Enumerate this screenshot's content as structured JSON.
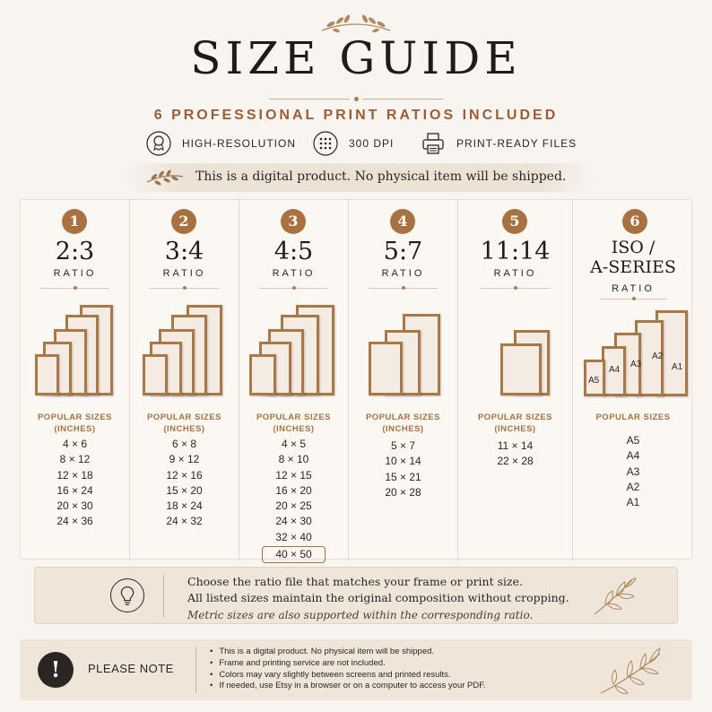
{
  "header": {
    "title": "SIZE GUIDE",
    "subtitle": "6 PROFESSIONAL PRINT RATIOS INCLUDED",
    "features": [
      {
        "icon": "award-ribbon-icon",
        "label": "HIGH-RESOLUTION"
      },
      {
        "icon": "dot-grid-icon",
        "label": "300 DPI"
      },
      {
        "icon": "printer-icon",
        "label": "PRINT-READY FILES"
      }
    ],
    "digital_notice": "This is a digital product. No physical item will be shipped."
  },
  "ratios": [
    {
      "number": "1",
      "ratio": "2:3",
      "ratio_label": "RATIO",
      "popular_title": "POPULAR SIZES",
      "popular_unit": "(INCHES)",
      "sizes": [
        "4 × 6",
        "8 × 12",
        "12 × 18",
        "16 × 24",
        "20 × 30",
        "24 × 36"
      ]
    },
    {
      "number": "2",
      "ratio": "3:4",
      "ratio_label": "RATIO",
      "popular_title": "POPULAR SIZES",
      "popular_unit": "(INCHES)",
      "sizes": [
        "6 × 8",
        "9 × 12",
        "12 × 16",
        "15 × 20",
        "18 × 24",
        "24 × 32"
      ]
    },
    {
      "number": "3",
      "ratio": "4:5",
      "ratio_label": "RATIO",
      "popular_title": "POPULAR SIZES",
      "popular_unit": "(INCHES)",
      "sizes": [
        "4 × 5",
        "8 × 10",
        "12 × 15",
        "16 × 20",
        "20 × 25",
        "24 × 30",
        "32 × 40",
        "40 × 50"
      ]
    },
    {
      "number": "4",
      "ratio": "5:7",
      "ratio_label": "RATIO",
      "popular_title": "POPULAR SIZES",
      "popular_unit": "(INCHES)",
      "sizes": [
        "5 × 7",
        "10 × 14",
        "15 × 21",
        "20 × 28"
      ]
    },
    {
      "number": "5",
      "ratio": "11:14",
      "ratio_label": "RATIO",
      "popular_title": "POPULAR SIZES",
      "popular_unit": "(INCHES)",
      "sizes": [
        "11 × 14",
        "22 × 28"
      ]
    },
    {
      "number": "6",
      "ratio_line1": "ISO /",
      "ratio_line2": "A-SERIES",
      "ratio_label": "RATIO",
      "popular_title": "POPULAR SIZES",
      "frame_labels": [
        "A5",
        "A4",
        "A3",
        "A2",
        "A1"
      ],
      "sizes": [
        "A5",
        "A4",
        "A3",
        "A2",
        "A1"
      ]
    }
  ],
  "tip": {
    "line1": "Choose the ratio file that matches your frame or print size.",
    "line2": "All listed sizes maintain the original composition without cropping.",
    "line3": "Metric sizes are also supported within the corresponding ratio."
  },
  "note": {
    "icon_glyph": "!",
    "title": "PLEASE NOTE",
    "items": [
      "This is a digital product. No physical item will be shipped.",
      "Frame and printing service are not included.",
      "Colors may vary slightly between screens and printed results.",
      "If needed, use Etsy in a browser or on a computer to access your PDF."
    ]
  },
  "colors": {
    "accent": "#a9713f",
    "frame": "#a87848",
    "background": "#f8f4ef",
    "text": "#2b2623"
  }
}
